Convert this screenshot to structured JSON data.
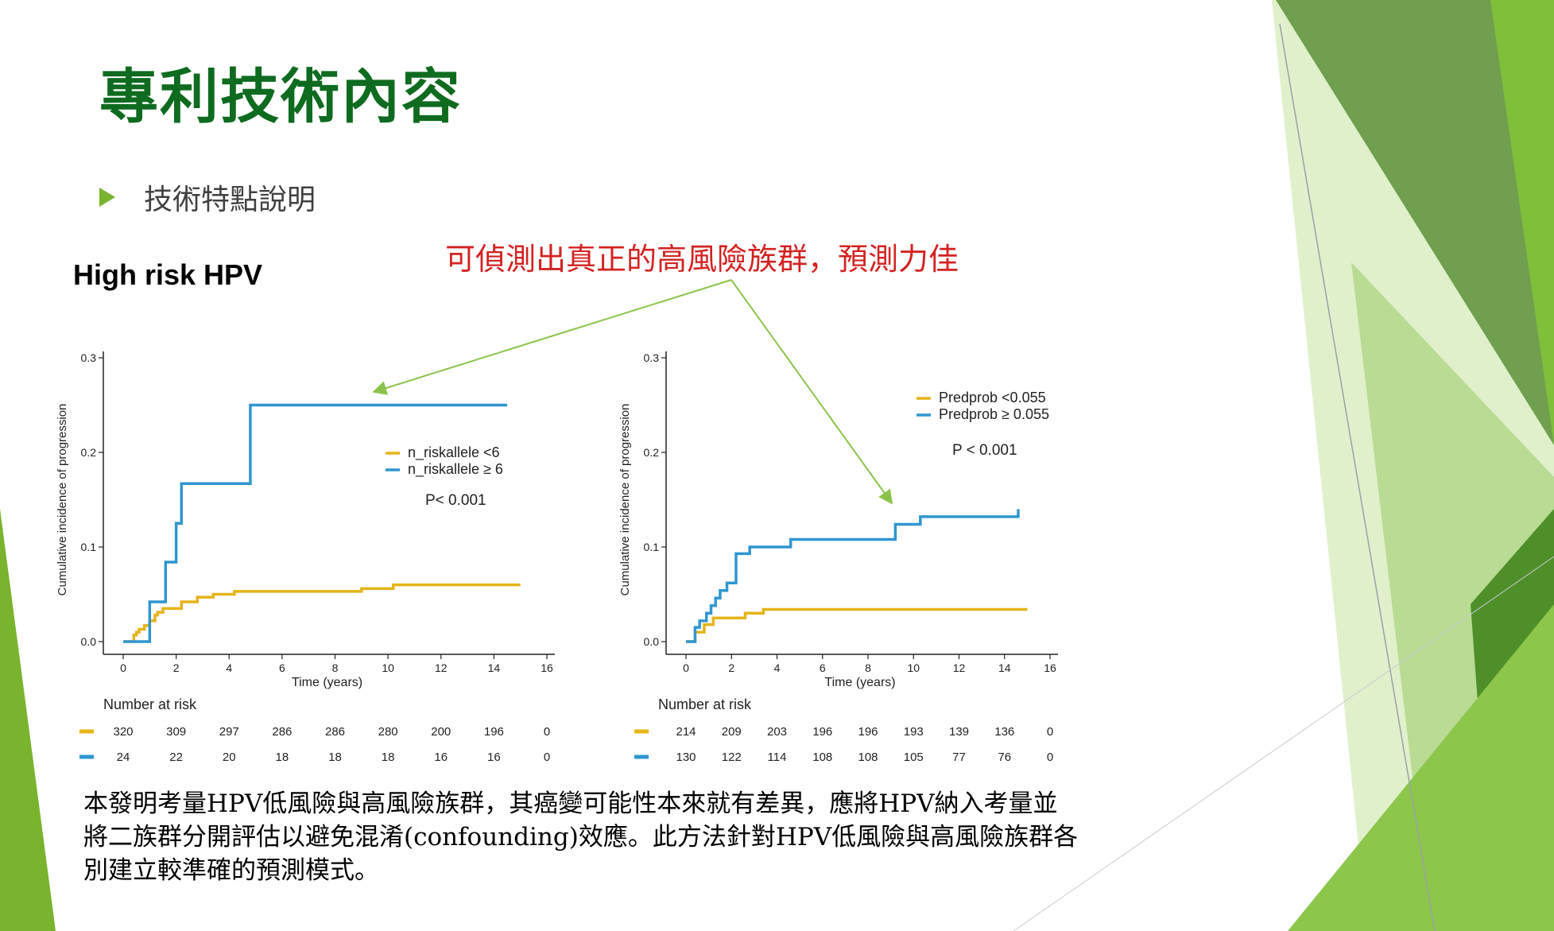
{
  "slide": {
    "title": "專利技術內容",
    "bullet": "技術特點說明",
    "subtitle": "High risk HPV",
    "callout": "可偵測出真正的高風險族群，預測力佳",
    "body_lines": [
      "本發明考量HPV低風險與高風險族群，其癌變可能性本來就有差異，應將HPV納入考量並",
      "將二族群分開評估以避免混淆(confounding)效應。此方法針對HPV低風險與高風險族群各",
      "別建立較準確的預測模式。"
    ]
  },
  "colors": {
    "title": "#0e6b1f",
    "callout": "#d42222",
    "series_low": "#e5b41a",
    "series_high": "#2f96d0",
    "arrow": "#8bc34a",
    "deco_green": "#7ab32e"
  },
  "chart_data": [
    {
      "type": "line",
      "step": true,
      "xlabel": "Time (years)",
      "ylabel": "Cumulative incidence of progression",
      "xlim": [
        0,
        16
      ],
      "ylim": [
        0,
        0.3
      ],
      "xticks": [
        "0",
        "2",
        "4",
        "6",
        "8",
        "10",
        "12",
        "14",
        "16"
      ],
      "yticks": [
        "0.0",
        "0.1",
        "0.2",
        "0.3"
      ],
      "legend_position": "right-middle",
      "pvalue": "P< 0.001",
      "risk_table_title": "Number at risk",
      "series": [
        {
          "name": "n_riskallele <6",
          "color": "#e5b41a",
          "x": [
            0,
            0.4,
            0.5,
            0.6,
            0.8,
            1.0,
            1.2,
            1.3,
            1.5,
            2.2,
            2.8,
            3.4,
            4.2,
            9.0,
            10.2,
            15
          ],
          "y": [
            0,
            0.007,
            0.01,
            0.013,
            0.017,
            0.022,
            0.028,
            0.031,
            0.035,
            0.042,
            0.047,
            0.05,
            0.053,
            0.056,
            0.06,
            0.06
          ],
          "at_risk": [
            "320",
            "309",
            "297",
            "286",
            "286",
            "280",
            "200",
            "196",
            "0"
          ]
        },
        {
          "name": "n_riskallele ≥ 6",
          "color": "#2f96d0",
          "x": [
            0,
            1.0,
            1.6,
            2.0,
            2.2,
            4.8,
            14.5
          ],
          "y": [
            0,
            0.042,
            0.084,
            0.125,
            0.167,
            0.25,
            0.25
          ],
          "at_risk": [
            "24",
            "22",
            "20",
            "18",
            "18",
            "18",
            "16",
            "16",
            "0"
          ]
        }
      ]
    },
    {
      "type": "line",
      "step": true,
      "xlabel": "Time (years)",
      "ylabel": "Cumulative incidence of progression",
      "xlim": [
        0,
        16
      ],
      "ylim": [
        0,
        0.3
      ],
      "xticks": [
        "0",
        "2",
        "4",
        "6",
        "8",
        "10",
        "12",
        "14",
        "16"
      ],
      "yticks": [
        "0.0",
        "0.1",
        "0.2",
        "0.3"
      ],
      "legend_position": "top-right",
      "pvalue": "P < 0.001",
      "risk_table_title": "Number at risk",
      "series": [
        {
          "name": "Predprob <0.055",
          "color": "#e5b41a",
          "x": [
            0,
            0.4,
            0.8,
            1.2,
            2.6,
            3.4,
            15
          ],
          "y": [
            0,
            0.01,
            0.018,
            0.025,
            0.03,
            0.034,
            0.034
          ],
          "at_risk": [
            "214",
            "209",
            "203",
            "196",
            "196",
            "193",
            "139",
            "136",
            "0"
          ]
        },
        {
          "name": "Predprob ≥ 0.055",
          "color": "#2f96d0",
          "x": [
            0,
            0.4,
            0.6,
            0.9,
            1.1,
            1.3,
            1.5,
            1.8,
            2.2,
            2.8,
            4.6,
            9.2,
            10.3,
            14.6
          ],
          "y": [
            0,
            0.015,
            0.022,
            0.03,
            0.038,
            0.046,
            0.054,
            0.062,
            0.093,
            0.1,
            0.108,
            0.124,
            0.132,
            0.14
          ],
          "at_risk": [
            "130",
            "122",
            "114",
            "108",
            "108",
            "105",
            "77",
            "76",
            "0"
          ]
        }
      ]
    }
  ]
}
